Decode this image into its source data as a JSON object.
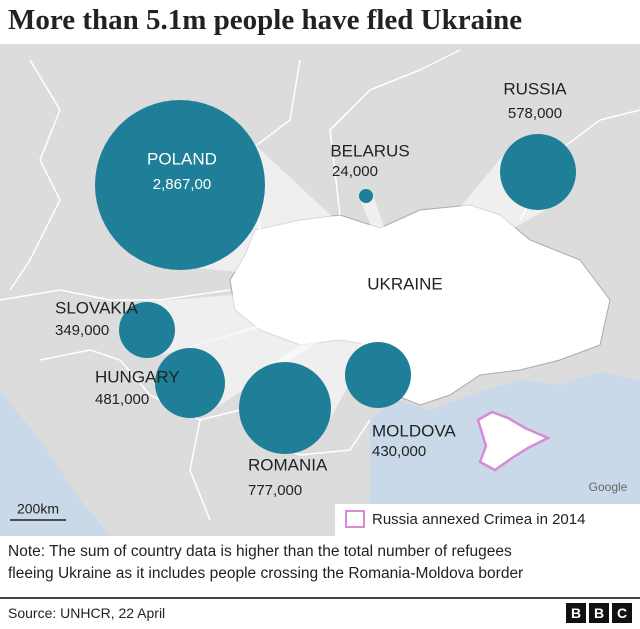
{
  "title": "More than 5.1m people have fled Ukraine",
  "countries": [
    {
      "name": "POLAND",
      "label": "2,867,00"
    },
    {
      "name": "RUSSIA",
      "label": "578,000"
    },
    {
      "name": "BELARUS",
      "label": "24,000"
    },
    {
      "name": "SLOVAKIA",
      "label": "349,000"
    },
    {
      "name": "HUNGARY",
      "label": "481,000"
    },
    {
      "name": "ROMANIA",
      "label": "777,000"
    },
    {
      "name": "MOLDOVA",
      "label": "430,000"
    }
  ],
  "ukraine_label": "UKRAINE",
  "attribution": "Google",
  "scale": "200km",
  "legend": "Russia annexed Crimea in 2014",
  "note_lines": [
    "Note: The sum of country data is higher than the total number of refugees",
    "fleeing Ukraine as it includes people crossing the Romania-Moldova border"
  ],
  "source": "Source: UNHCR, 22 April",
  "logo": [
    "B",
    "B",
    "C"
  ]
}
